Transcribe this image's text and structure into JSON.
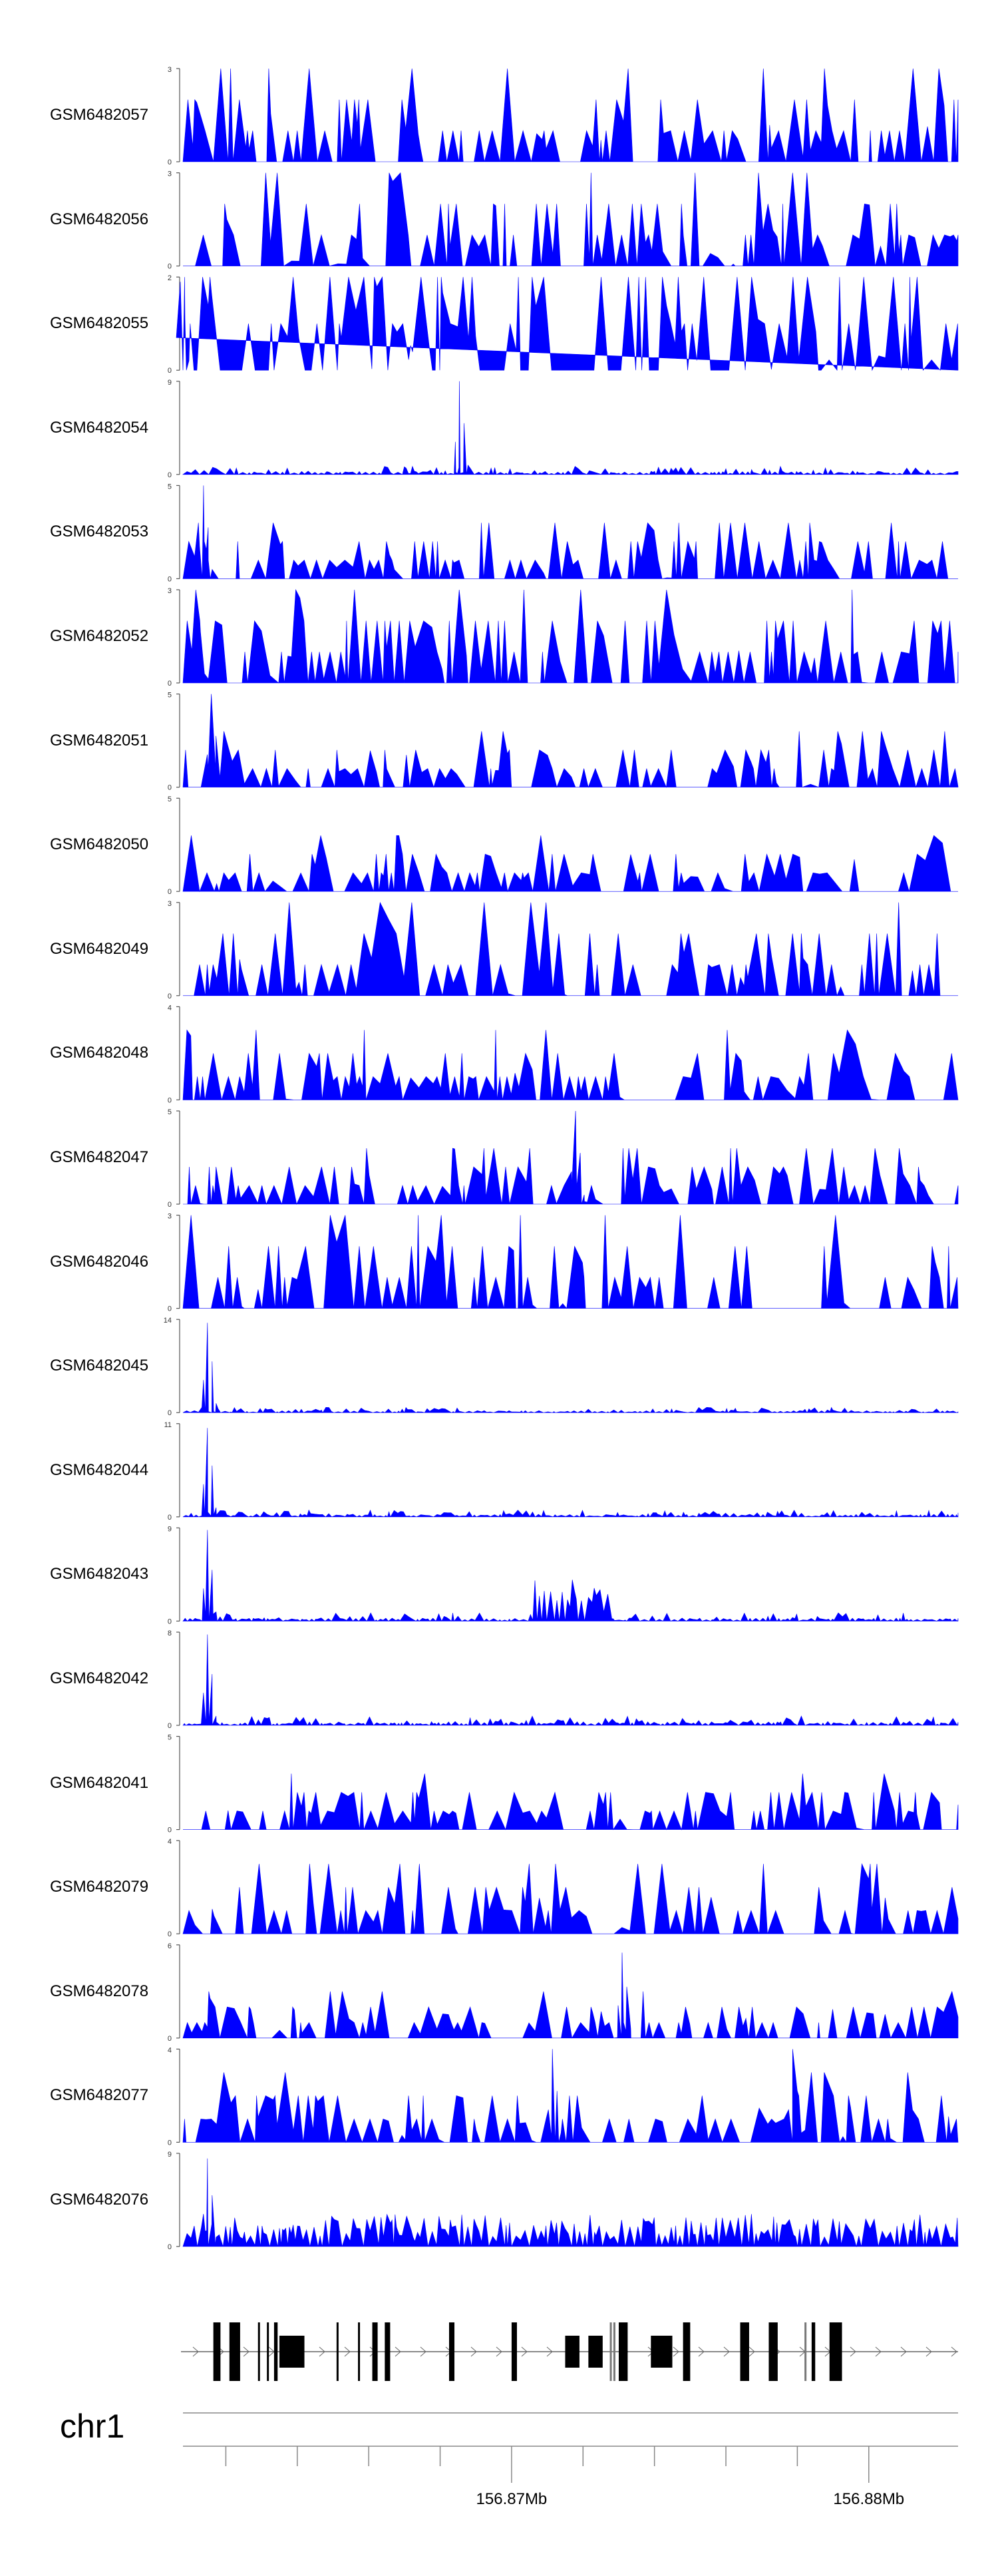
{
  "chart_data": {
    "type": "area",
    "tracks": [
      {
        "name": "GSM6482057",
        "ymax": 3,
        "seed": 57,
        "peaks": []
      },
      {
        "name": "GSM6482056",
        "ymax": 3,
        "seed": 56,
        "peaks": []
      },
      {
        "name": "GSM6482055",
        "ymax": 2,
        "seed": 55,
        "peaks": [
          [
            0.0,
            1.9
          ]
        ]
      },
      {
        "name": "GSM6482054",
        "ymax": 9,
        "seed": 54,
        "peaks": [
          [
            0.36,
            9
          ]
        ]
      },
      {
        "name": "GSM6482053",
        "ymax": 5,
        "seed": 53,
        "peaks": [
          [
            0.03,
            5
          ]
        ]
      },
      {
        "name": "GSM6482052",
        "ymax": 3,
        "seed": 52,
        "peaks": [
          [
            0.02,
            3
          ]
        ]
      },
      {
        "name": "GSM6482051",
        "ymax": 5,
        "seed": 51,
        "peaks": [
          [
            0.04,
            5
          ]
        ]
      },
      {
        "name": "GSM6482050",
        "ymax": 5,
        "seed": 50,
        "peaks": []
      },
      {
        "name": "GSM6482049",
        "ymax": 3,
        "seed": 49,
        "peaks": []
      },
      {
        "name": "GSM6482048",
        "ymax": 4,
        "seed": 48,
        "peaks": []
      },
      {
        "name": "GSM6482047",
        "ymax": 5,
        "seed": 47,
        "peaks": [
          [
            0.51,
            5
          ]
        ]
      },
      {
        "name": "GSM6482046",
        "ymax": 3,
        "seed": 46,
        "peaks": []
      },
      {
        "name": "GSM6482045",
        "ymax": 14,
        "seed": 45,
        "peaks": [
          [
            0.035,
            13.5
          ]
        ]
      },
      {
        "name": "GSM6482044",
        "ymax": 11,
        "seed": 44,
        "peaks": [
          [
            0.035,
            10.5
          ]
        ]
      },
      {
        "name": "GSM6482043",
        "ymax": 9,
        "seed": 43,
        "peaks": [
          [
            0.035,
            8.8
          ]
        ]
      },
      {
        "name": "GSM6482042",
        "ymax": 8,
        "seed": 42,
        "peaks": [
          [
            0.035,
            7.8
          ]
        ]
      },
      {
        "name": "GSM6482041",
        "ymax": 5,
        "seed": 41,
        "peaks": []
      },
      {
        "name": "GSM6482079",
        "ymax": 4,
        "seed": 79,
        "peaks": []
      },
      {
        "name": "GSM6482078",
        "ymax": 6,
        "seed": 78,
        "peaks": [
          [
            0.57,
            5.5
          ]
        ]
      },
      {
        "name": "GSM6482077",
        "ymax": 4,
        "seed": 77,
        "peaks": [
          [
            0.48,
            4
          ],
          [
            0.79,
            4
          ]
        ]
      },
      {
        "name": "GSM6482076",
        "ymax": 9,
        "seed": 76,
        "peaks": [
          [
            0.035,
            8.5
          ]
        ]
      }
    ],
    "x_range_mb": [
      156.8608,
      156.8825
    ],
    "x_ticks_mb": [
      156.862,
      156.864,
      156.866,
      156.868,
      156.87,
      156.872,
      156.874,
      156.876,
      156.878,
      156.88
    ],
    "x_tick_labels": [
      {
        "value": 156.87,
        "label": "156.87Mb"
      },
      {
        "value": 156.88,
        "label": "156.88Mb"
      }
    ],
    "chromosome": "chr1",
    "fill_color": "#0000ff",
    "gene_model": {
      "strand": "+",
      "exons_mb": [
        [
          156.86165,
          156.86185
        ],
        [
          156.8621,
          156.8624
        ],
        [
          156.8629,
          156.86295
        ],
        [
          156.86315,
          156.8632
        ],
        [
          156.86335,
          156.86345
        ],
        [
          156.8635,
          156.8642
        ],
        [
          156.8651,
          156.86515
        ],
        [
          156.8657,
          156.86575
        ],
        [
          156.8661,
          156.86625
        ],
        [
          156.86645,
          156.8666
        ],
        [
          156.86825,
          156.8684
        ],
        [
          156.87,
          156.87015
        ],
        [
          156.8715,
          156.8719
        ],
        [
          156.87215,
          156.87255
        ],
        [
          156.873,
          156.87325
        ],
        [
          156.8739,
          156.8745
        ],
        [
          156.8748,
          156.875
        ],
        [
          156.8764,
          156.87665
        ],
        [
          156.8772,
          156.87745
        ],
        [
          156.8784,
          156.8785
        ],
        [
          156.8789,
          156.87925
        ]
      ],
      "thin_marks_mb": [
        156.87275,
        156.87285,
        156.8782
      ]
    }
  }
}
